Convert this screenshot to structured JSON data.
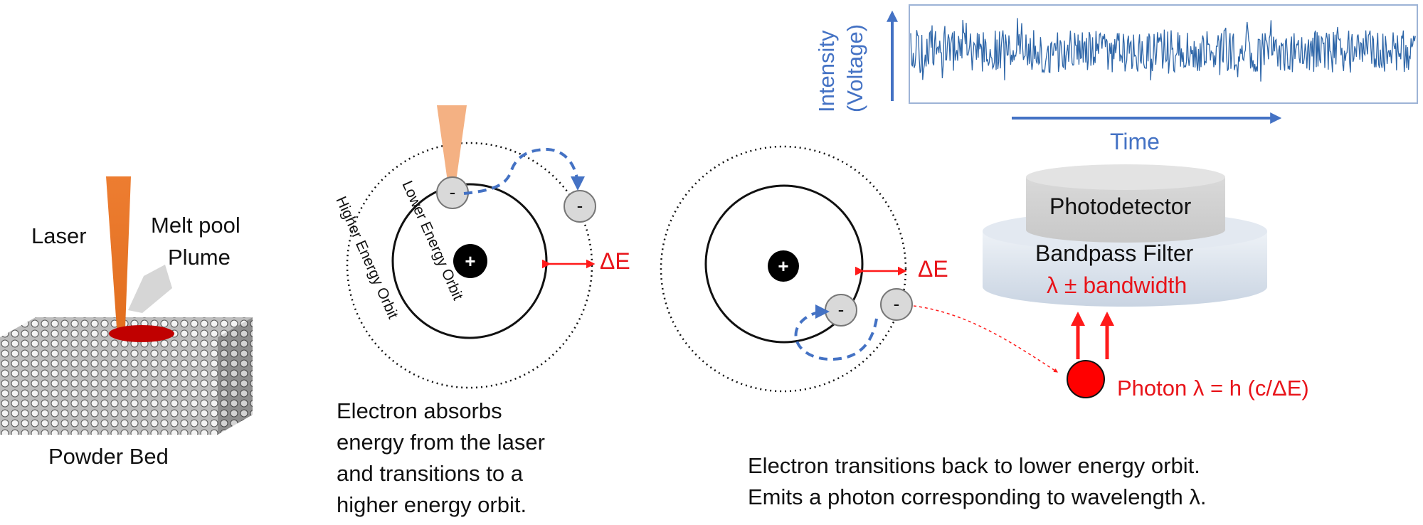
{
  "powder_bed": {
    "laser_label": "Laser",
    "melt_pool_label": "Melt pool",
    "plume_label": "Plume",
    "bed_label": "Powder Bed"
  },
  "absorption": {
    "nucleus_symbol": "+",
    "electron_symbol": "-",
    "higher_orbit_label": "Higher Energy Orbit",
    "lower_orbit_label": "Lower Energy Orbit",
    "delta_e_label": "ΔE",
    "caption_lines": [
      "Electron absorbs",
      "energy from the laser",
      "and transitions to a",
      "higher energy orbit."
    ]
  },
  "emission": {
    "nucleus_symbol": "+",
    "electron_symbol": "-",
    "delta_e_label": "ΔE",
    "photon_label": "Photon λ = h (c/ΔE)",
    "caption_lines": [
      "Electron transitions back to lower energy orbit.",
      "Emits a photon corresponding to wavelength λ."
    ]
  },
  "detector": {
    "photodetector_label": "Photodetector",
    "filter_label": "Bandpass Filter",
    "filter_sublabel": "λ ± bandwidth"
  },
  "signal_plot": {
    "y_axis_label_line1": "Intensity",
    "y_axis_label_line2": "(Voltage)",
    "x_axis_label": "Time"
  },
  "colors": {
    "laser": "#ed7d31",
    "melt_pool": "#c00000",
    "photon": "#ff0000",
    "signal": "#2e66a8",
    "axis_blue": "#4472c4",
    "delta_red": "#e8141a"
  }
}
